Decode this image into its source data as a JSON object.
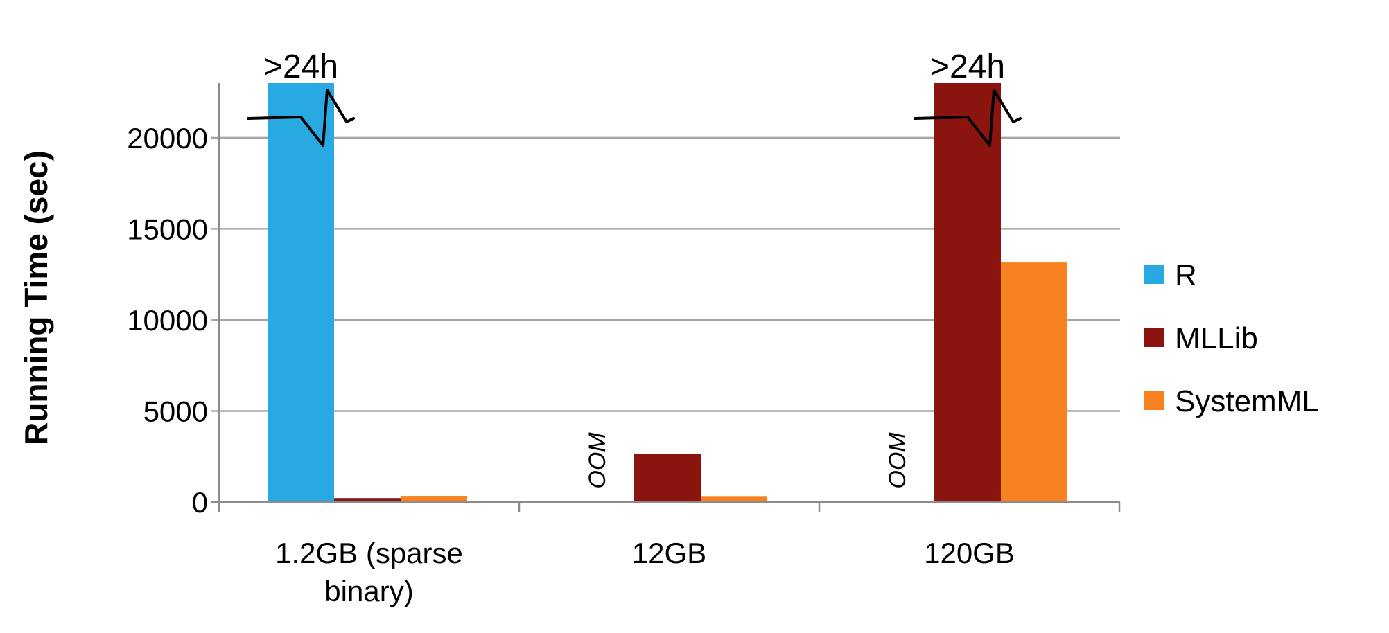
{
  "chart_data": {
    "type": "bar",
    "title": "",
    "xlabel": "",
    "ylabel": "Running Time (sec)",
    "ylim": [
      0,
      23000
    ],
    "yticks": [
      0,
      5000,
      10000,
      15000,
      20000
    ],
    "grid": true,
    "legend_position": "right",
    "categories": [
      "1.2GB (sparse binary)",
      "12GB",
      "120GB"
    ],
    "category_label_lines": [
      [
        "1.2GB (sparse",
        "binary)"
      ],
      [
        "12GB"
      ],
      [
        "120GB"
      ]
    ],
    "series": [
      {
        "name": "R",
        "color": "#29a9e1",
        "values": [
          23000,
          null,
          null
        ]
      },
      {
        "name": "MLLib",
        "color": "#8b140e",
        "values": [
          220,
          2650,
          23000
        ]
      },
      {
        "name": "SystemML",
        "color": "#f7821f",
        "values": [
          340,
          330,
          13150
        ]
      }
    ],
    "annotations": [
      {
        "text": ">24h",
        "category": 0,
        "series": 0,
        "kind": "truncated"
      },
      {
        "text": ">24h",
        "category": 2,
        "series": 1,
        "kind": "truncated"
      },
      {
        "text": "OOM",
        "category": 1,
        "series": 0,
        "kind": "missing"
      },
      {
        "text": "OOM",
        "category": 2,
        "series": 0,
        "kind": "missing"
      }
    ]
  }
}
